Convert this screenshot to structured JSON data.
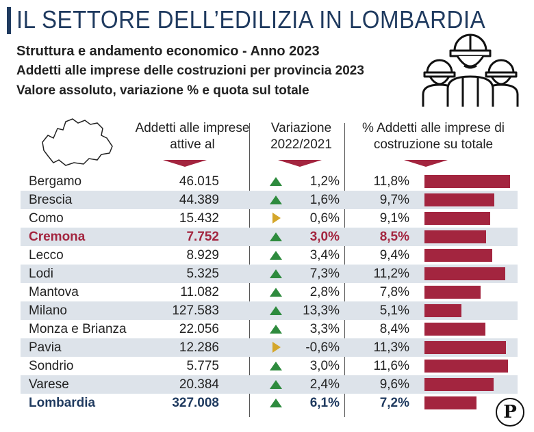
{
  "header": {
    "title": "IL SETTORE DELL’EDILIZIA IN LOMBARDIA",
    "subtitle1": "Struttura e andamento economico - Anno 2023",
    "subtitle2": "Addetti alle imprese delle costruzioni per provincia 2023",
    "subtitle3": "Valore assoluto, variazione % e quota sul totale"
  },
  "columns": {
    "addetti": "Addetti alle imprese attive al",
    "variazione": "Variazione 2022/2021",
    "quota": "% Addetti alle imprese di costruzione su totale"
  },
  "icons": {
    "illustration": "construction-workers-icon",
    "map": "lombardia-map-icon",
    "logo": "P"
  },
  "colors": {
    "title": "#1f3a5f",
    "bar": "#a3253f",
    "up": "#2e8b3e",
    "flat": "#d4a62a",
    "shade": "#dde3ea"
  },
  "chart_data": {
    "type": "table",
    "rows": [
      {
        "name": "Bergamo",
        "addetti": "46.015",
        "variazione": "1,2%",
        "trend": "up",
        "quota": "11,8%",
        "quota_value": 11.8
      },
      {
        "name": "Brescia",
        "addetti": "44.389",
        "variazione": "1,6%",
        "trend": "up",
        "quota": "9,7%",
        "quota_value": 9.7
      },
      {
        "name": "Como",
        "addetti": "15.432",
        "variazione": "0,6%",
        "trend": "flat",
        "quota": "9,1%",
        "quota_value": 9.1
      },
      {
        "name": "Cremona",
        "addetti": "7.752",
        "variazione": "3,0%",
        "trend": "up",
        "quota": "8,5%",
        "quota_value": 8.5,
        "highlight": "cremona"
      },
      {
        "name": "Lecco",
        "addetti": "8.929",
        "variazione": "3,4%",
        "trend": "up",
        "quota": "9,4%",
        "quota_value": 9.4
      },
      {
        "name": "Lodi",
        "addetti": "5.325",
        "variazione": "7,3%",
        "trend": "up",
        "quota": "11,2%",
        "quota_value": 11.2
      },
      {
        "name": "Mantova",
        "addetti": "11.082",
        "variazione": "2,8%",
        "trend": "up",
        "quota": "7,8%",
        "quota_value": 7.8
      },
      {
        "name": "Milano",
        "addetti": "127.583",
        "variazione": "13,3%",
        "trend": "up",
        "quota": "5,1%",
        "quota_value": 5.1
      },
      {
        "name": "Monza e Brianza",
        "addetti": "22.056",
        "variazione": "3,3%",
        "trend": "up",
        "quota": "8,4%",
        "quota_value": 8.4
      },
      {
        "name": "Pavia",
        "addetti": "12.286",
        "variazione": "-0,6%",
        "trend": "flat",
        "quota": "11,3%",
        "quota_value": 11.3
      },
      {
        "name": "Sondrio",
        "addetti": "5.775",
        "variazione": "3,0%",
        "trend": "up",
        "quota": "11,6%",
        "quota_value": 11.6
      },
      {
        "name": "Varese",
        "addetti": "20.384",
        "variazione": "2,4%",
        "trend": "up",
        "quota": "9,6%",
        "quota_value": 9.6
      },
      {
        "name": "Lombardia",
        "addetti": "327.008",
        "variazione": "6,1%",
        "trend": "up",
        "quota": "7,2%",
        "quota_value": 7.2,
        "highlight": "total"
      }
    ],
    "bar_scale_max": 12.5
  }
}
